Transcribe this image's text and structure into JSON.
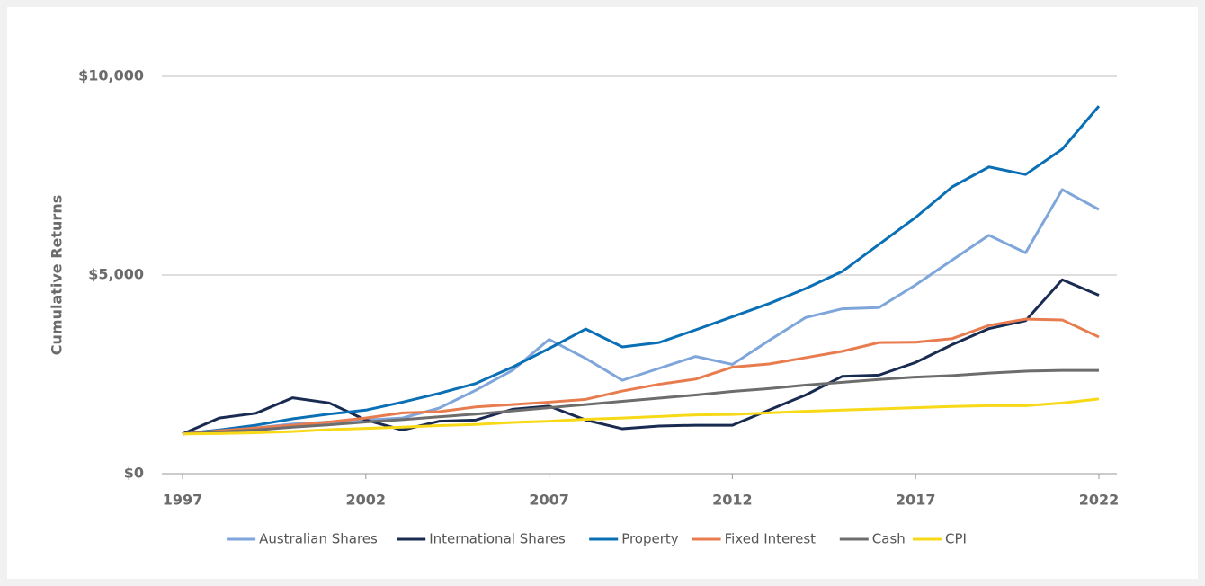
{
  "chart_data": {
    "type": "line",
    "ylabel": "Cumulative Returns",
    "x": [
      1997,
      1998,
      1999,
      2000,
      2001,
      2002,
      2003,
      2004,
      2005,
      2006,
      2007,
      2008,
      2009,
      2010,
      2011,
      2012,
      2013,
      2014,
      2015,
      2016,
      2017,
      2018,
      2019,
      2020,
      2021,
      2022
    ],
    "xlim": [
      1997,
      2022
    ],
    "xticks": [
      1997,
      2002,
      2007,
      2012,
      2017,
      2022
    ],
    "ylim": [
      0,
      10000
    ],
    "yticks": [
      {
        "value": 0,
        "label": "$0"
      },
      {
        "value": 5000,
        "label": "$5,000"
      },
      {
        "value": 10000,
        "label": "$10,000"
      }
    ],
    "grid": true,
    "legend": "bottom",
    "series": [
      {
        "name": "Australian Shares",
        "color": "#7ea6db",
        "values": [
          1000,
          1100,
          1150,
          1250,
          1300,
          1350,
          1400,
          1650,
          2100,
          2600,
          3380,
          2900,
          2350,
          2650,
          2950,
          2750,
          3350,
          3930,
          4150,
          4180,
          4750,
          5380,
          6000,
          5560,
          7150,
          6650
        ]
      },
      {
        "name": "International Shares",
        "color": "#1a2b52",
        "values": [
          1000,
          1400,
          1520,
          1910,
          1780,
          1350,
          1100,
          1320,
          1350,
          1620,
          1700,
          1350,
          1130,
          1200,
          1220,
          1220,
          1600,
          1980,
          2450,
          2480,
          2800,
          3250,
          3650,
          3850,
          4880,
          4490
        ]
      },
      {
        "name": "Property",
        "color": "#0a6fb4",
        "values": [
          1000,
          1100,
          1220,
          1380,
          1500,
          1600,
          1800,
          2020,
          2270,
          2680,
          3150,
          3640,
          3190,
          3300,
          3620,
          3950,
          4280,
          4660,
          5090,
          5770,
          6450,
          7220,
          7720,
          7530,
          8170,
          9250
        ]
      },
      {
        "name": "Fixed Interest",
        "color": "#e87c4e",
        "values": [
          1000,
          1080,
          1150,
          1220,
          1300,
          1400,
          1530,
          1560,
          1680,
          1740,
          1800,
          1870,
          2080,
          2250,
          2380,
          2680,
          2760,
          2920,
          3080,
          3300,
          3310,
          3400,
          3730,
          3890,
          3870,
          3440
        ]
      },
      {
        "name": "Cash",
        "color": "#6d6d6d",
        "values": [
          1000,
          1050,
          1100,
          1170,
          1230,
          1300,
          1360,
          1430,
          1500,
          1580,
          1660,
          1740,
          1820,
          1900,
          1980,
          2070,
          2140,
          2230,
          2300,
          2370,
          2430,
          2470,
          2530,
          2580,
          2600,
          2600
        ]
      },
      {
        "name": "CPI",
        "color": "#f7d917",
        "values": [
          1000,
          1010,
          1030,
          1060,
          1110,
          1140,
          1170,
          1210,
          1240,
          1290,
          1320,
          1370,
          1400,
          1440,
          1480,
          1490,
          1530,
          1570,
          1600,
          1630,
          1660,
          1690,
          1710,
          1710,
          1780,
          1880
        ]
      }
    ]
  }
}
